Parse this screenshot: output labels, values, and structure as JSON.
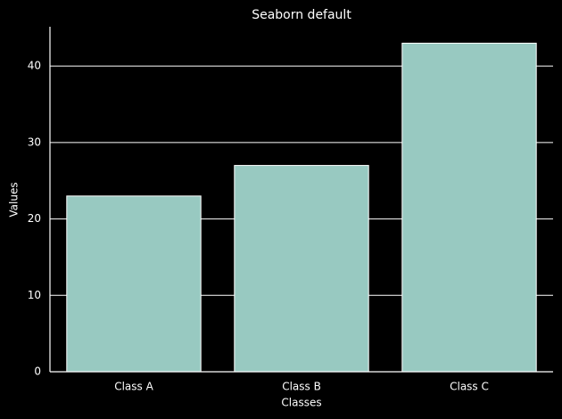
{
  "chart_data": {
    "type": "bar",
    "title": "Seaborn default",
    "x_label": "Classes",
    "y_label": "Values",
    "categories": [
      "Class A",
      "Class B",
      "Class C"
    ],
    "values": [
      23,
      27,
      43
    ],
    "color": "#98c9c1",
    "ylim": [
      0,
      45.15
    ],
    "yticks": [
      0,
      10,
      20,
      30,
      40
    ],
    "grid": true
  }
}
